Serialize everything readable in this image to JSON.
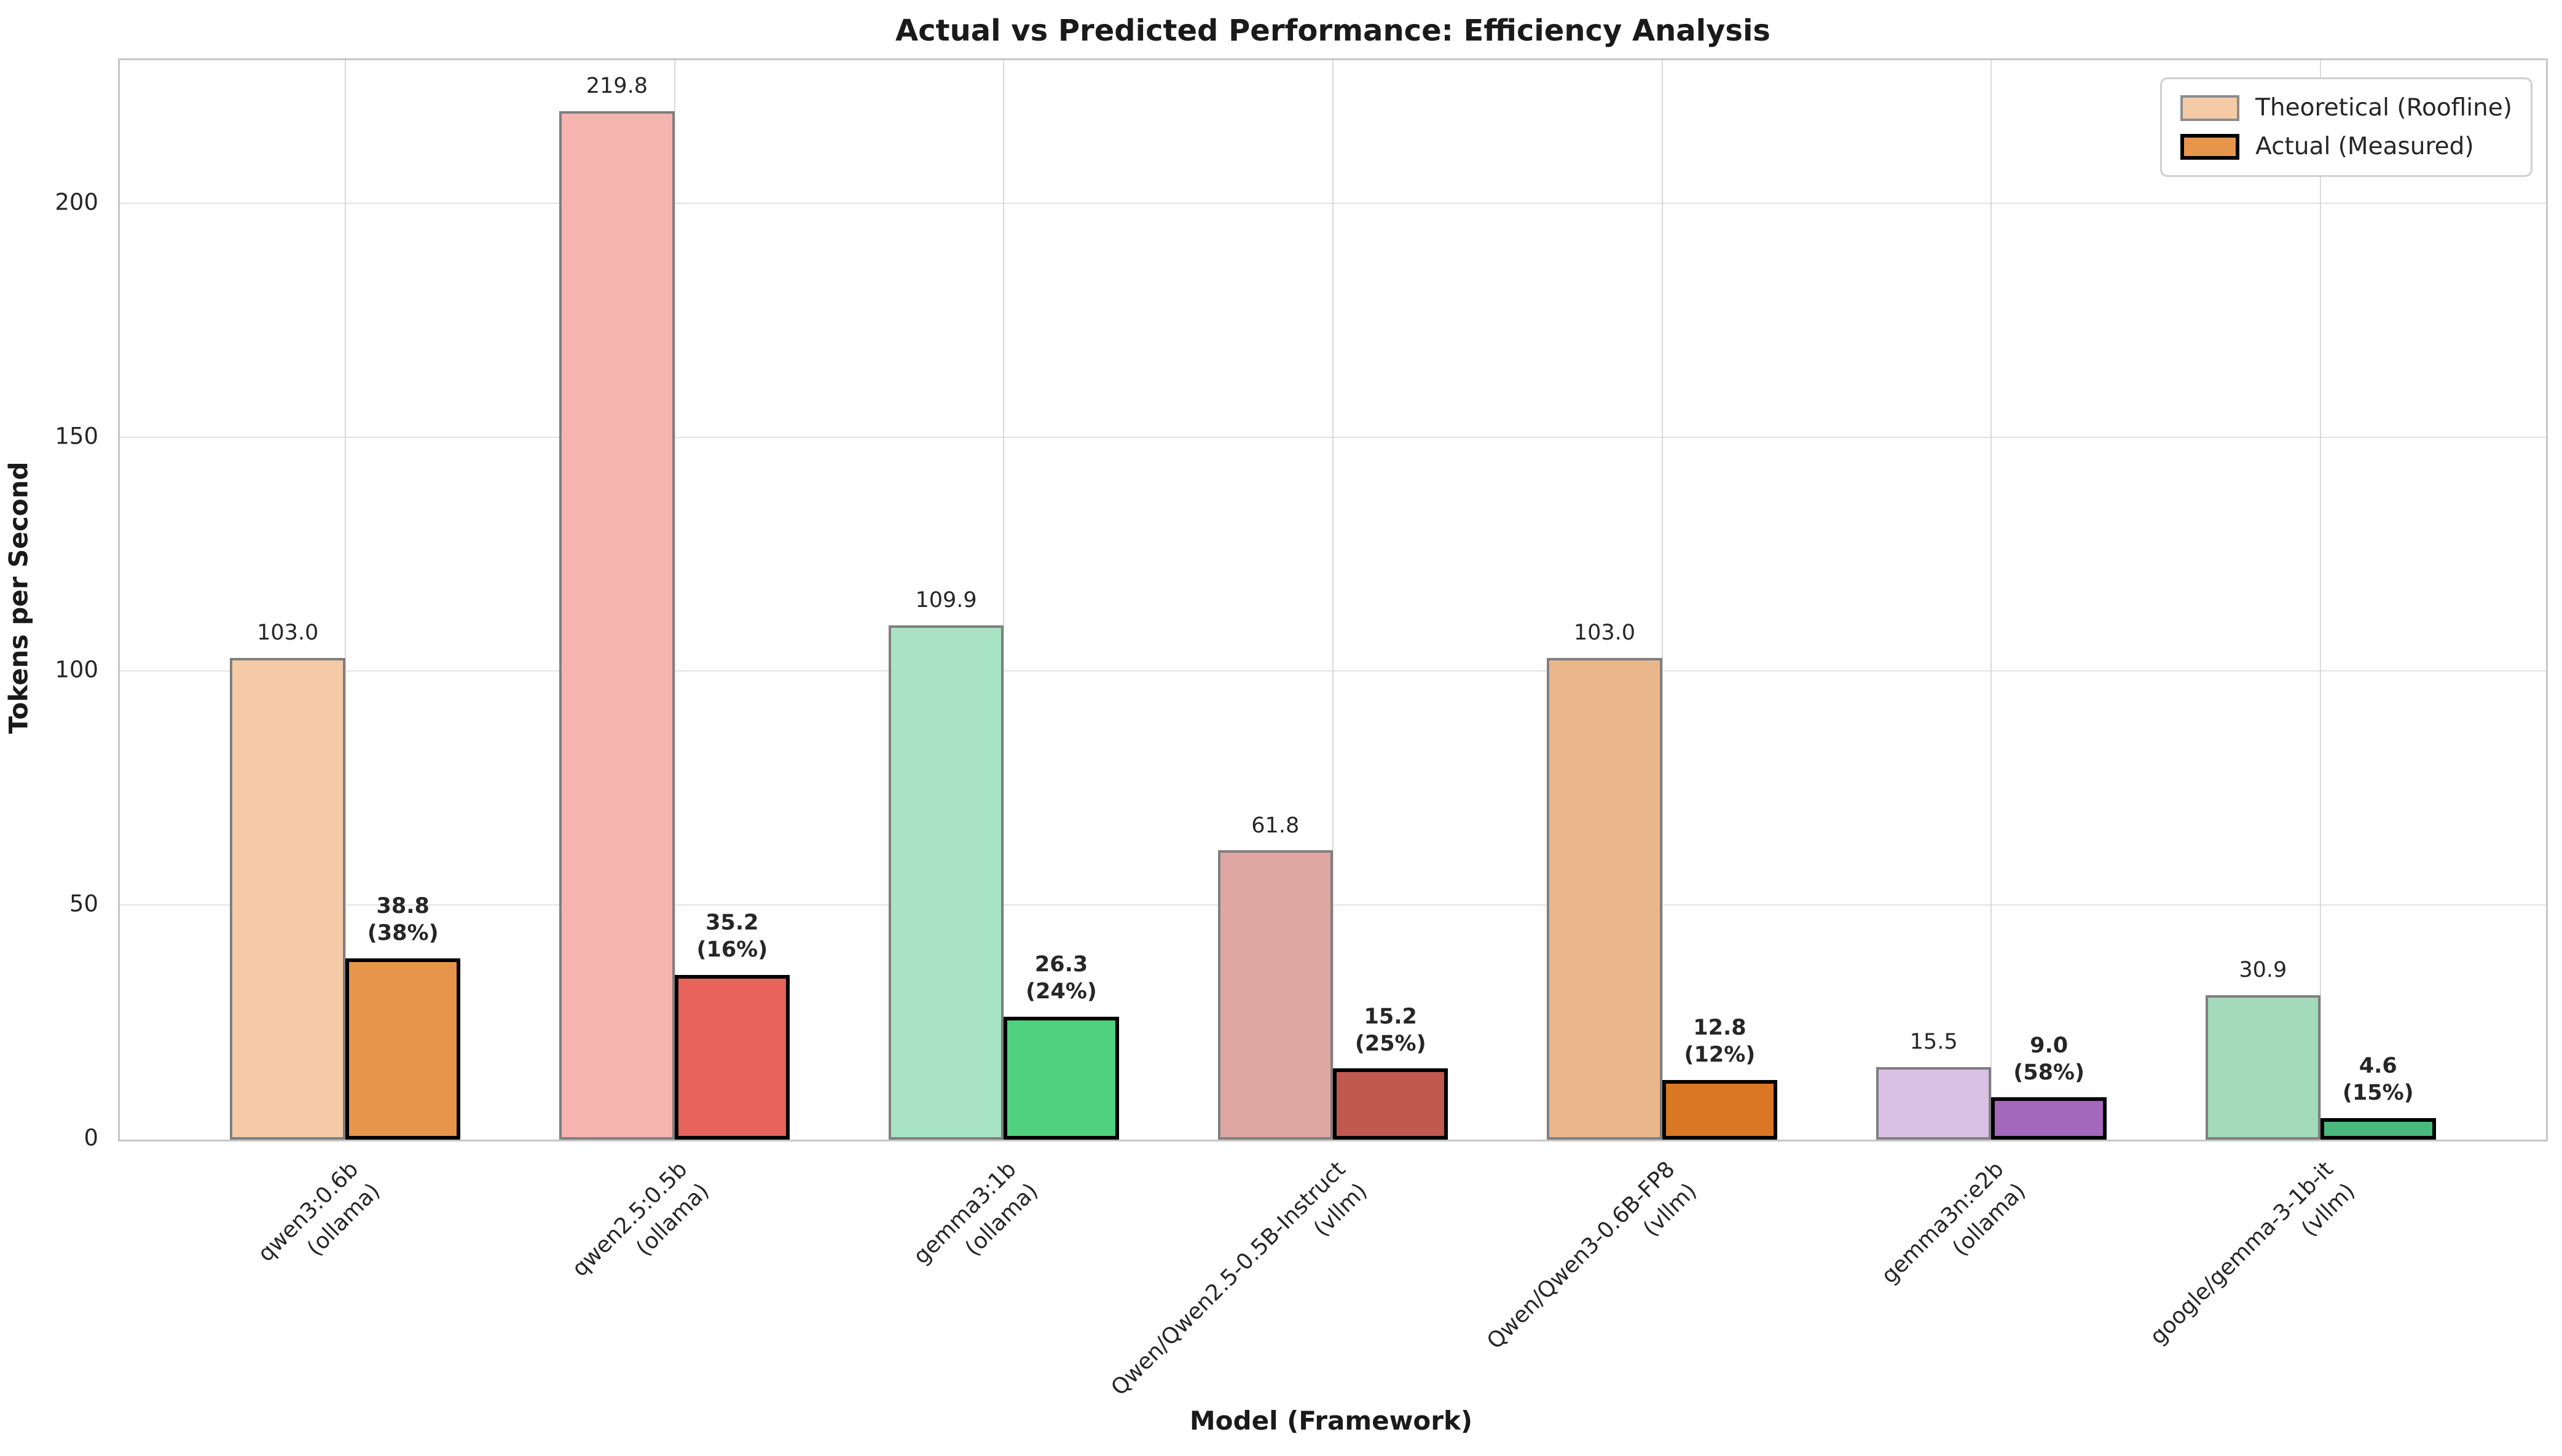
{
  "chart_data": {
    "type": "bar",
    "title": "Actual vs Predicted Performance: Efficiency Analysis",
    "xlabel": "Model (Framework)",
    "ylabel": "Tokens per Second",
    "ylim": [
      0,
      230.7
    ],
    "yticks": [
      0,
      50,
      100,
      150,
      200
    ],
    "grid": true,
    "legend": {
      "position": "upper right",
      "entries": [
        {
          "label": "Theoretical (Roofline)",
          "fill": "#f5cba7",
          "border": "#8c8c8c"
        },
        {
          "label": "Actual (Measured)",
          "fill": "#e8954c",
          "border": "#000000"
        }
      ]
    },
    "categories": [
      {
        "model": "qwen3:0.6b",
        "framework": "ollama"
      },
      {
        "model": "qwen2.5:0.5b",
        "framework": "ollama"
      },
      {
        "model": "gemma3:1b",
        "framework": "ollama"
      },
      {
        "model": "Qwen/Qwen2.5-0.5B-Instruct",
        "framework": "vllm"
      },
      {
        "model": "Qwen/Qwen3-0.6B-FP8",
        "framework": "vllm"
      },
      {
        "model": "gemma3n:e2b",
        "framework": "ollama"
      },
      {
        "model": "google/gemma-3-1b-it",
        "framework": "vllm"
      }
    ],
    "series": [
      {
        "name": "Theoretical (Roofline)",
        "values": [
          103.0,
          219.8,
          109.9,
          61.8,
          103.0,
          15.5,
          30.9
        ],
        "labels": [
          "103.0",
          "219.8",
          "109.9",
          "61.8",
          "103.0",
          "15.5",
          "30.9"
        ]
      },
      {
        "name": "Actual (Measured)",
        "values": [
          38.8,
          35.2,
          26.3,
          15.2,
          12.8,
          9.0,
          4.6
        ],
        "labels": [
          "38.8",
          "35.2",
          "26.3",
          "15.2",
          "12.8",
          "9.0",
          "4.6"
        ],
        "pct_labels": [
          "(38%)",
          "(16%)",
          "(24%)",
          "(25%)",
          "(12%)",
          "(58%)",
          "(15%)"
        ]
      }
    ],
    "group_colors": [
      {
        "theoretical": "#f5cba7",
        "actual": "#e8954c"
      },
      {
        "theoretical": "#f6b4ae",
        "actual": "#e7635b"
      },
      {
        "theoretical": "#a8e4c3",
        "actual": "#4fd17f"
      },
      {
        "theoretical": "#dfa7a1",
        "actual": "#c05a50"
      },
      {
        "theoretical": "#eab68c",
        "actual": "#d97724"
      },
      {
        "theoretical": "#d8c1e4",
        "actual": "#a468bd"
      },
      {
        "theoretical": "#a3dab9",
        "actual": "#49ba7b"
      }
    ],
    "bar_edge": {
      "theoretical": "#7f7f7f",
      "actual": "#000000"
    }
  }
}
